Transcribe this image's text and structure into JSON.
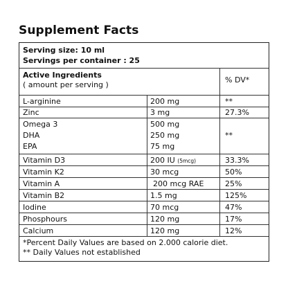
{
  "title": "Supplement Facts",
  "serving": {
    "size": "Serving size: 10 ml",
    "per_container": "Servings per container : 25"
  },
  "header": {
    "ingredients_line1": "Active Ingredients",
    "ingredients_line2": "( amount per serving )",
    "dv": "% DV*"
  },
  "rows": [
    {
      "name": "L-arginine",
      "amount": "200 mg",
      "dv": "**"
    },
    {
      "name": "Zinc",
      "amount": "3 mg",
      "dv": "27.3%"
    },
    {
      "names": [
        "Omega 3",
        "DHA",
        "EPA"
      ],
      "amounts": [
        "500 mg",
        "250 mg",
        "75 mg"
      ],
      "dv": "**"
    },
    {
      "name": "Vitamin D3",
      "amount": "200 IU",
      "amount_note": "(5mcg)",
      "dv": "33.3%"
    },
    {
      "name": "Vitamin K2",
      "amount": "30 mcg",
      "dv": "50%"
    },
    {
      "name": "Vitamin A",
      "amount": "200 mcg RAE",
      "dv": "25%"
    },
    {
      "name": "Vitamin B2",
      "amount": "1.5 mg",
      "dv": "125%"
    },
    {
      "name": "Iodine",
      "amount": "70 mcg",
      "dv": "47%"
    },
    {
      "name": "Phosphours",
      "amount": "120 mg",
      "dv": "17%"
    },
    {
      "name": "Calcium",
      "amount": "120 mg",
      "dv": "12%"
    }
  ],
  "footnotes": [
    "*Percent Daily Values are based on 2.000 calorie diet.",
    "** Daily Values  not established"
  ]
}
